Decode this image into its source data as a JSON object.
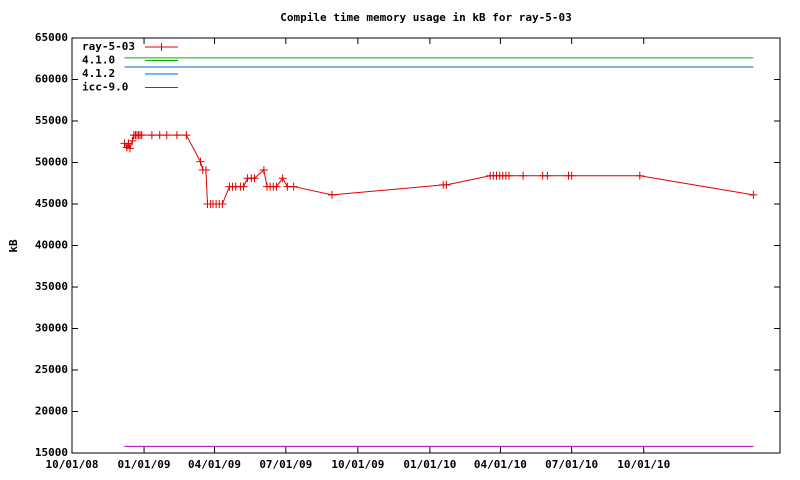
{
  "chart_data": {
    "type": "line",
    "title": "Compile time memory usage in kB for ray-5-03",
    "y_label": "kB",
    "xlim": [
      "10/01/08",
      "03/24/11"
    ],
    "xticks": [
      "10/01/08",
      "01/01/09",
      "04/01/09",
      "07/01/09",
      "10/01/09",
      "01/01/10",
      "04/01/10",
      "07/01/10",
      "10/01/10"
    ],
    "ylim": [
      15000,
      65000
    ],
    "yticks": [
      15000,
      20000,
      25000,
      30000,
      35000,
      40000,
      45000,
      50000,
      55000,
      60000,
      65000
    ],
    "legend": "top-left",
    "series": [
      {
        "name": "ray-5-03",
        "color": "#e00000",
        "marker": "+",
        "x": [
          "12/07/08",
          "12/10/08",
          "12/12/08",
          "12/14/08",
          "12/17/08",
          "12/19/08",
          "12/21/08",
          "12/23/08",
          "12/25/08",
          "12/27/08",
          "12/29/08",
          "01/11/09",
          "01/21/09",
          "01/30/09",
          "02/12/09",
          "02/24/09",
          "03/14/09",
          "03/17/09",
          "03/21/09",
          "03/23/09",
          "03/27/09",
          "03/30/09",
          "04/03/09",
          "04/07/09",
          "04/11/09",
          "04/20/09",
          "04/24/09",
          "04/28/09",
          "05/04/09",
          "05/08/09",
          "05/13/09",
          "05/18/09",
          "05/22/09",
          "06/03/09",
          "06/07/09",
          "06/11/09",
          "06/15/09",
          "06/19/09",
          "06/27/09",
          "07/03/09",
          "07/11/09",
          "08/29/09",
          "01/18/10",
          "01/22/10",
          "03/19/10",
          "03/23/10",
          "03/27/10",
          "03/31/10",
          "04/04/10",
          "04/08/10",
          "04/12/10",
          "04/30/10",
          "05/25/10",
          "05/31/10",
          "06/27/10",
          "07/01/10",
          "09/26/10",
          "02/18/11"
        ],
        "values": [
          52300,
          51800,
          52300,
          51700,
          52600,
          53300,
          53300,
          53300,
          53300,
          53300,
          53300,
          53300,
          53300,
          53300,
          53300,
          53300,
          50100,
          49100,
          49100,
          45000,
          45000,
          45000,
          45000,
          45000,
          45000,
          47100,
          47100,
          47100,
          47100,
          47100,
          48100,
          48100,
          48100,
          49100,
          47100,
          47100,
          47100,
          47100,
          48100,
          47100,
          47100,
          46100,
          47300,
          47300,
          48400,
          48400,
          48400,
          48400,
          48400,
          48400,
          48400,
          48400,
          48400,
          48400,
          48400,
          48400,
          48400,
          46100
        ]
      },
      {
        "name": "4.1.0",
        "color": "#00b000",
        "x": [
          "12/07/08",
          "02/18/11"
        ],
        "values": [
          62600,
          62600
        ]
      },
      {
        "name": "4.1.2",
        "color": "#0060d0",
        "x": [
          "12/07/08",
          "02/18/11"
        ],
        "values": [
          61500,
          61500
        ]
      },
      {
        "name": "icc-9.0",
        "color": "#b000b0",
        "x": [
          "12/07/08",
          "02/18/11"
        ],
        "values": [
          15800,
          15800
        ]
      }
    ]
  }
}
